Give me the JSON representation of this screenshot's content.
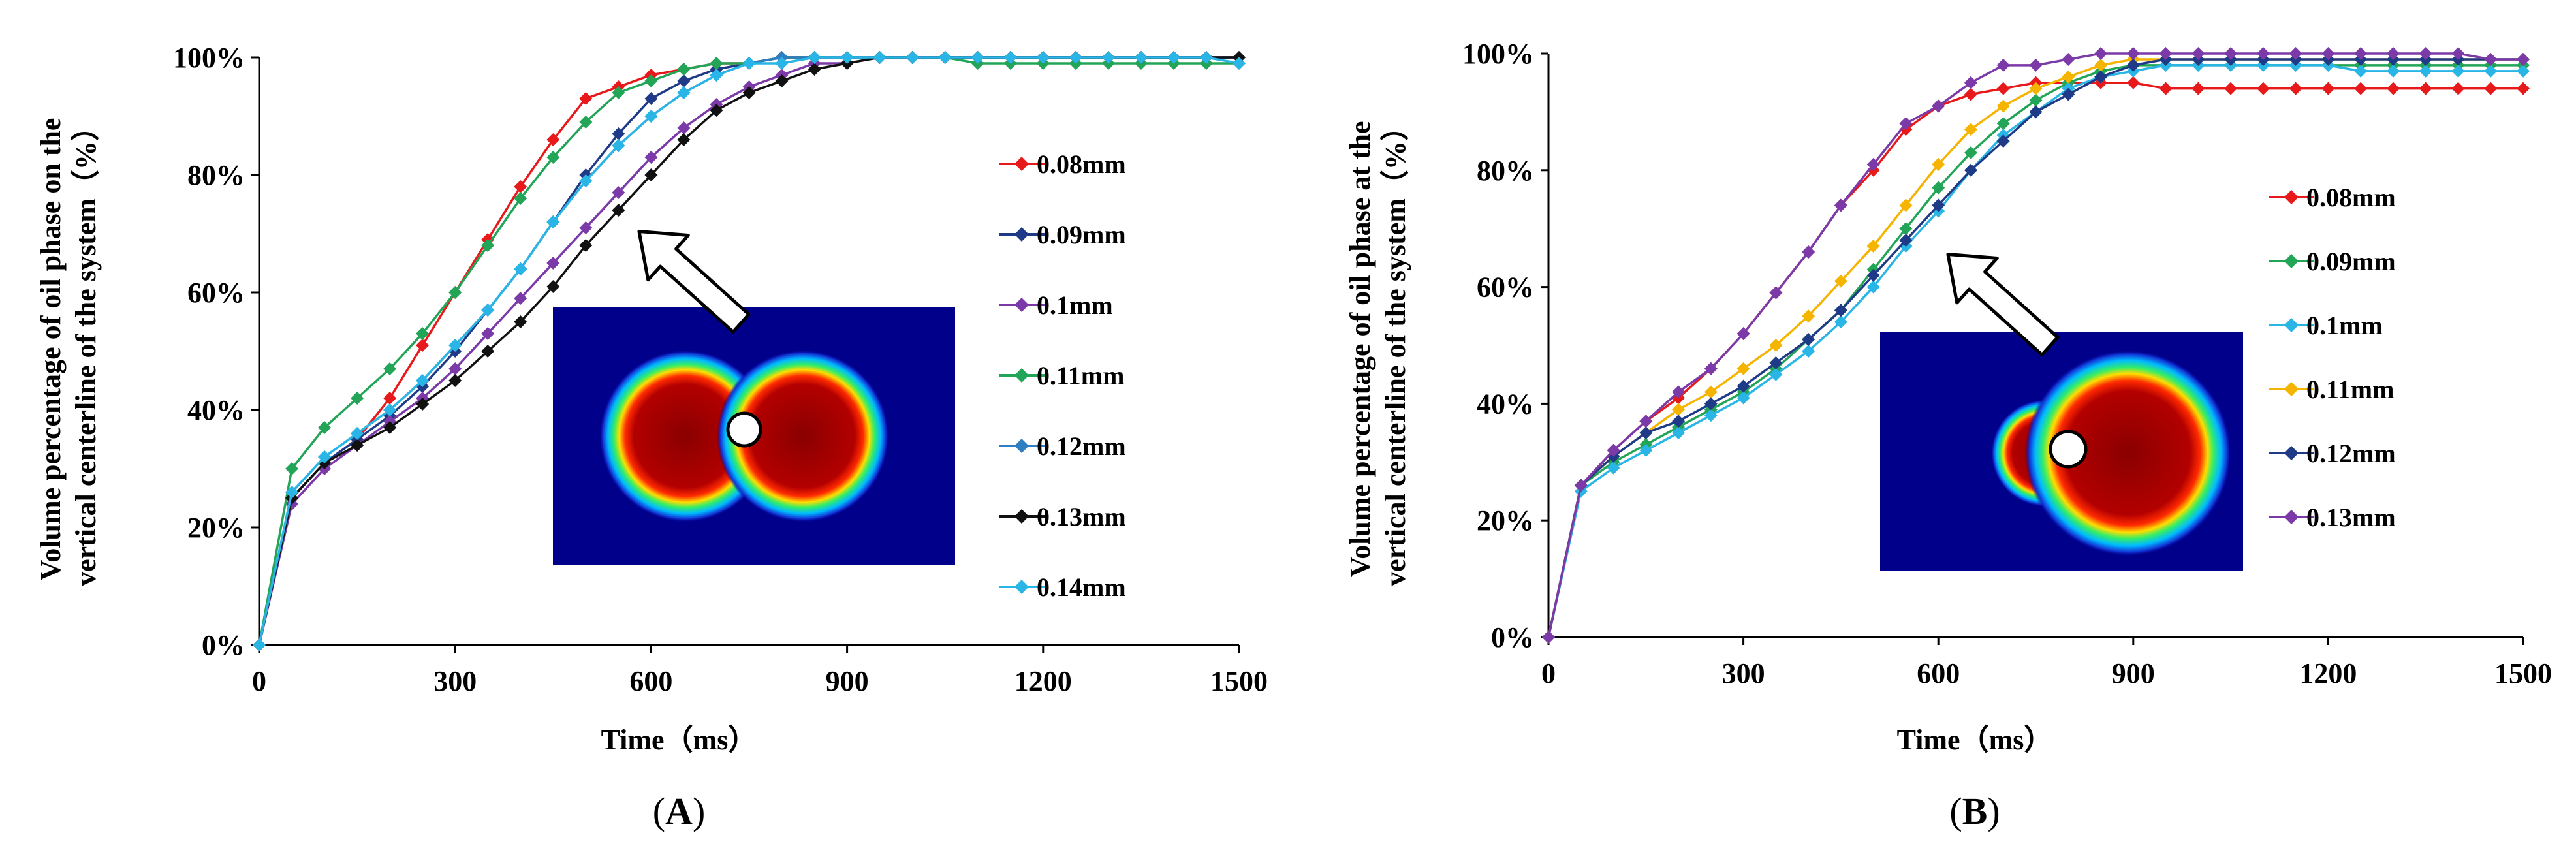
{
  "chart_data": [
    {
      "type": "line",
      "panel_label": "A",
      "xlabel": "Time（ms）",
      "ylabel_line1": "Volume percentage of oil phase on the",
      "ylabel_line2": "vertical centerline of the system（%）",
      "xlim": [
        0,
        1500
      ],
      "ylim": [
        0,
        100
      ],
      "x_ticks": [
        0,
        300,
        600,
        900,
        1200,
        1500
      ],
      "y_ticks": [
        "0%",
        "20%",
        "40%",
        "60%",
        "80%",
        "100%"
      ],
      "inset": "oil-droplet-simulation-symmetric",
      "x": [
        0,
        50,
        100,
        150,
        200,
        250,
        300,
        350,
        400,
        450,
        500,
        550,
        600,
        650,
        700,
        750,
        800,
        850,
        900,
        950,
        1000,
        1050,
        1100,
        1150,
        1200,
        1250,
        1300,
        1350,
        1400,
        1450,
        1500
      ],
      "series": [
        {
          "name": "0.08mm",
          "color": "#e8191b",
          "values": [
            0,
            25,
            31,
            35,
            42,
            51,
            60,
            69,
            78,
            86,
            93,
            95,
            97,
            98,
            99,
            99,
            100,
            100,
            100,
            100,
            100,
            100,
            100,
            100,
            100,
            100,
            100,
            100,
            100,
            100,
            100
          ]
        },
        {
          "name": "0.09mm",
          "color": "#1f3a86",
          "values": [
            0,
            25,
            31,
            35,
            39,
            44,
            50,
            57,
            64,
            72,
            80,
            87,
            93,
            96,
            98,
            99,
            100,
            100,
            100,
            100,
            100,
            100,
            100,
            100,
            100,
            100,
            100,
            100,
            100,
            100,
            100
          ]
        },
        {
          "name": "0.1mm",
          "color": "#7b3aa8",
          "values": [
            0,
            24,
            30,
            34,
            38,
            42,
            47,
            53,
            59,
            65,
            71,
            77,
            83,
            88,
            92,
            95,
            97,
            99,
            99,
            100,
            100,
            100,
            100,
            100,
            100,
            100,
            100,
            100,
            100,
            100,
            100
          ]
        },
        {
          "name": "0.11mm",
          "color": "#22a557",
          "values": [
            0,
            30,
            37,
            42,
            47,
            53,
            60,
            68,
            76,
            83,
            89,
            94,
            96,
            98,
            99,
            99,
            100,
            100,
            100,
            100,
            100,
            100,
            99,
            99,
            99,
            99,
            99,
            99,
            99,
            99,
            99
          ]
        },
        {
          "name": "0.12mm",
          "color": "#2f7ec1",
          "values": [
            0,
            26,
            32,
            36,
            40,
            45,
            51,
            57,
            64,
            72,
            79,
            85,
            90,
            94,
            97,
            99,
            100,
            100,
            100,
            100,
            100,
            100,
            100,
            100,
            100,
            100,
            100,
            100,
            100,
            100,
            100
          ]
        },
        {
          "name": "0.13mm",
          "color": "#111111",
          "values": [
            0,
            25,
            31,
            34,
            37,
            41,
            45,
            50,
            55,
            61,
            68,
            74,
            80,
            86,
            91,
            94,
            96,
            98,
            99,
            100,
            100,
            100,
            100,
            100,
            100,
            100,
            100,
            100,
            100,
            100,
            100
          ]
        },
        {
          "name": "0.14mm",
          "color": "#29b6e6",
          "values": [
            0,
            26,
            32,
            36,
            40,
            45,
            51,
            57,
            64,
            72,
            79,
            85,
            90,
            94,
            97,
            99,
            99,
            100,
            100,
            100,
            100,
            100,
            100,
            100,
            100,
            100,
            100,
            100,
            100,
            100,
            99
          ]
        }
      ]
    },
    {
      "type": "line",
      "panel_label": "B",
      "xlabel": "Time（ms）",
      "ylabel_line1": "Volume percentage of oil phase at the",
      "ylabel_line2": "vertical centerline of the system（%）",
      "xlim": [
        0,
        1500
      ],
      "ylim": [
        0,
        100
      ],
      "x_ticks": [
        0,
        300,
        600,
        900,
        1200,
        1500
      ],
      "y_ticks": [
        "0%",
        "20%",
        "40%",
        "60%",
        "80%",
        "100%"
      ],
      "inset": "oil-droplet-simulation-asymmetric",
      "x": [
        0,
        50,
        100,
        150,
        200,
        250,
        300,
        350,
        400,
        450,
        500,
        550,
        600,
        650,
        700,
        750,
        800,
        850,
        900,
        950,
        1000,
        1050,
        1100,
        1150,
        1200,
        1250,
        1300,
        1350,
        1400,
        1450,
        1500
      ],
      "series": [
        {
          "name": "0.08mm",
          "color": "#e8191b",
          "values": [
            0,
            26,
            32,
            37,
            41,
            46,
            52,
            59,
            66,
            74,
            80,
            87,
            91,
            93,
            94,
            95,
            95,
            95,
            95,
            94,
            94,
            94,
            94,
            94,
            94,
            94,
            94,
            94,
            94,
            94,
            94
          ]
        },
        {
          "name": "0.09mm",
          "color": "#22a557",
          "values": [
            0,
            26,
            30,
            33,
            36,
            39,
            42,
            46,
            51,
            56,
            63,
            70,
            77,
            83,
            88,
            92,
            95,
            97,
            98,
            98,
            98,
            98,
            98,
            98,
            98,
            98,
            98,
            98,
            98,
            98,
            98
          ]
        },
        {
          "name": "0.1mm",
          "color": "#29b6e6",
          "values": [
            0,
            25,
            29,
            32,
            35,
            38,
            41,
            45,
            49,
            54,
            60,
            67,
            73,
            80,
            86,
            90,
            94,
            96,
            97,
            98,
            98,
            98,
            98,
            98,
            98,
            97,
            97,
            97,
            97,
            97,
            97
          ]
        },
        {
          "name": "0.11mm",
          "color": "#f4b400",
          "values": [
            0,
            26,
            31,
            35,
            39,
            42,
            46,
            50,
            55,
            61,
            67,
            74,
            81,
            87,
            91,
            94,
            96,
            98,
            99,
            99,
            99,
            99,
            99,
            99,
            99,
            99,
            99,
            99,
            99,
            99,
            99
          ]
        },
        {
          "name": "0.12mm",
          "color": "#1f3a86",
          "values": [
            0,
            26,
            31,
            35,
            37,
            40,
            43,
            47,
            51,
            56,
            62,
            68,
            74,
            80,
            85,
            90,
            93,
            96,
            98,
            99,
            99,
            99,
            99,
            99,
            99,
            99,
            99,
            99,
            99,
            99,
            99
          ]
        },
        {
          "name": "0.13mm",
          "color": "#7b3aa8",
          "values": [
            0,
            26,
            32,
            37,
            42,
            46,
            52,
            59,
            66,
            74,
            81,
            88,
            91,
            95,
            98,
            98,
            99,
            100,
            100,
            100,
            100,
            100,
            100,
            100,
            100,
            100,
            100,
            100,
            100,
            99,
            99
          ]
        }
      ]
    }
  ]
}
